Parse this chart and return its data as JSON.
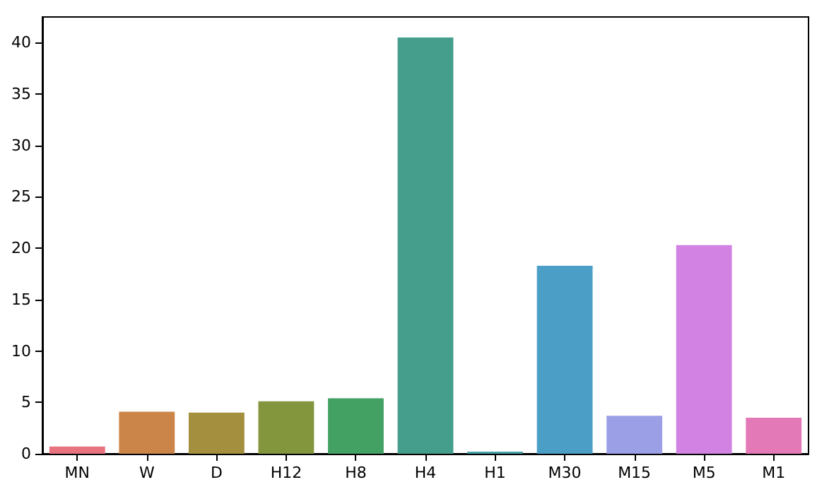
{
  "chart_data": {
    "type": "bar",
    "categories": [
      "MN",
      "W",
      "D",
      "H12",
      "H8",
      "H4",
      "H1",
      "M30",
      "M15",
      "M5",
      "M1"
    ],
    "values": [
      0.7,
      4.1,
      4.0,
      5.1,
      5.4,
      40.5,
      0.2,
      18.3,
      3.7,
      20.3,
      3.5
    ],
    "colors": [
      "#e7737f",
      "#cb8548",
      "#a48f3e",
      "#83963e",
      "#43a164",
      "#459e8c",
      "#46a0a8",
      "#4b9fc6",
      "#9b9fe6",
      "#d282e2",
      "#e479b8"
    ],
    "ylim": [
      0,
      42.5
    ],
    "yticks": [
      0,
      5,
      10,
      15,
      20,
      25,
      30,
      35,
      40
    ],
    "grid": false
  }
}
